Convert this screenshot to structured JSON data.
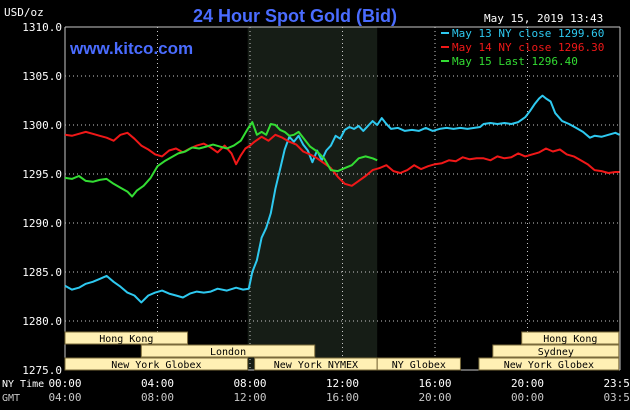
{
  "chart_data": {
    "type": "line",
    "title": "24 Hour Spot Gold (Bid)",
    "watermark": "www.kitco.com",
    "date_stamp": "May 15, 2019 13:43",
    "y_unit": "USD/oz",
    "ylim": [
      1275,
      1310
    ],
    "y_ticks": [
      "1310.0",
      "1305.0",
      "1300.0",
      "1295.0",
      "1290.0",
      "1285.0",
      "1280.0",
      "1275.0"
    ],
    "xlim": [
      0,
      24
    ],
    "x_ticks_ny": [
      "00:00",
      "04:00",
      "08:00",
      "12:00",
      "16:00",
      "20:00",
      "23:59"
    ],
    "x_ticks_gmt": [
      "04:00",
      "08:00",
      "12:00",
      "16:00",
      "20:00",
      "00:00",
      "03:59"
    ],
    "x_row_label_ny": "NY Time",
    "x_row_label_gmt": "GMT",
    "grid": true,
    "legend_position": "top-right",
    "session_highlight": [
      7.9,
      13.5
    ],
    "colors": {
      "background": "#000000",
      "grid": "#c8c8c8",
      "axis_text": "#ffffff",
      "title": "#4a6cff",
      "watermark": "#4a6cff",
      "highlight": "#161d16",
      "market_bar": "#fff0b4",
      "market_text": "#000000"
    },
    "series": [
      {
        "name": "May 13 NY close 1299.60",
        "color": "#2ec9f0",
        "points": [
          [
            0,
            1283.6
          ],
          [
            0.3,
            1283.2
          ],
          [
            0.6,
            1283.4
          ],
          [
            0.9,
            1283.8
          ],
          [
            1.2,
            1284.0
          ],
          [
            1.5,
            1284.3
          ],
          [
            1.8,
            1284.6
          ],
          [
            2.1,
            1284.0
          ],
          [
            2.4,
            1283.5
          ],
          [
            2.7,
            1282.9
          ],
          [
            3.0,
            1282.6
          ],
          [
            3.3,
            1281.9
          ],
          [
            3.6,
            1282.6
          ],
          [
            3.9,
            1282.9
          ],
          [
            4.2,
            1283.1
          ],
          [
            4.5,
            1282.8
          ],
          [
            4.8,
            1282.6
          ],
          [
            5.1,
            1282.4
          ],
          [
            5.4,
            1282.8
          ],
          [
            5.7,
            1283.0
          ],
          [
            6.0,
            1282.9
          ],
          [
            6.3,
            1283.0
          ],
          [
            6.6,
            1283.3
          ],
          [
            7.0,
            1283.1
          ],
          [
            7.4,
            1283.4
          ],
          [
            7.7,
            1283.2
          ],
          [
            7.95,
            1283.3
          ],
          [
            8.1,
            1285.0
          ],
          [
            8.3,
            1286.2
          ],
          [
            8.5,
            1288.5
          ],
          [
            8.7,
            1289.5
          ],
          [
            8.9,
            1291.0
          ],
          [
            9.1,
            1293.5
          ],
          [
            9.3,
            1295.5
          ],
          [
            9.5,
            1297.5
          ],
          [
            9.7,
            1298.8
          ],
          [
            9.9,
            1298.3
          ],
          [
            10.1,
            1298.9
          ],
          [
            10.3,
            1298.0
          ],
          [
            10.5,
            1297.4
          ],
          [
            10.7,
            1296.2
          ],
          [
            10.9,
            1297.4
          ],
          [
            11.1,
            1296.4
          ],
          [
            11.3,
            1297.4
          ],
          [
            11.5,
            1297.9
          ],
          [
            11.7,
            1298.9
          ],
          [
            11.9,
            1298.6
          ],
          [
            12.1,
            1299.5
          ],
          [
            12.3,
            1299.8
          ],
          [
            12.5,
            1299.6
          ],
          [
            12.7,
            1299.9
          ],
          [
            12.9,
            1299.4
          ],
          [
            13.1,
            1299.9
          ],
          [
            13.3,
            1300.4
          ],
          [
            13.5,
            1300.0
          ],
          [
            13.7,
            1300.7
          ],
          [
            13.9,
            1300.1
          ],
          [
            14.1,
            1299.6
          ],
          [
            14.4,
            1299.7
          ],
          [
            14.7,
            1299.4
          ],
          [
            15.0,
            1299.5
          ],
          [
            15.3,
            1299.4
          ],
          [
            15.6,
            1299.7
          ],
          [
            15.9,
            1299.4
          ],
          [
            16.2,
            1299.6
          ],
          [
            16.5,
            1299.7
          ],
          [
            16.8,
            1299.6
          ],
          [
            17.1,
            1299.7
          ],
          [
            17.4,
            1299.6
          ],
          [
            17.7,
            1299.7
          ],
          [
            17.95,
            1299.8
          ],
          [
            18.1,
            1300.1
          ],
          [
            18.4,
            1300.2
          ],
          [
            18.7,
            1300.1
          ],
          [
            19.0,
            1300.2
          ],
          [
            19.3,
            1300.1
          ],
          [
            19.6,
            1300.3
          ],
          [
            19.9,
            1300.8
          ],
          [
            20.1,
            1301.4
          ],
          [
            20.3,
            1302.1
          ],
          [
            20.5,
            1302.7
          ],
          [
            20.65,
            1303.0
          ],
          [
            20.8,
            1302.7
          ],
          [
            21.0,
            1302.4
          ],
          [
            21.2,
            1301.2
          ],
          [
            21.5,
            1300.4
          ],
          [
            21.8,
            1300.1
          ],
          [
            22.1,
            1299.7
          ],
          [
            22.4,
            1299.3
          ],
          [
            22.7,
            1298.7
          ],
          [
            22.9,
            1298.9
          ],
          [
            23.2,
            1298.8
          ],
          [
            23.5,
            1299.0
          ],
          [
            23.8,
            1299.2
          ],
          [
            23.98,
            1299.0
          ]
        ]
      },
      {
        "name": "May 14 NY close 1296.30",
        "color": "#f01818",
        "points": [
          [
            0,
            1299.0
          ],
          [
            0.3,
            1298.9
          ],
          [
            0.6,
            1299.1
          ],
          [
            0.9,
            1299.3
          ],
          [
            1.2,
            1299.1
          ],
          [
            1.5,
            1298.9
          ],
          [
            1.8,
            1298.7
          ],
          [
            2.1,
            1298.4
          ],
          [
            2.4,
            1299.0
          ],
          [
            2.7,
            1299.2
          ],
          [
            3.0,
            1298.6
          ],
          [
            3.3,
            1297.9
          ],
          [
            3.6,
            1297.5
          ],
          [
            3.9,
            1297.0
          ],
          [
            4.2,
            1296.8
          ],
          [
            4.5,
            1297.4
          ],
          [
            4.8,
            1297.6
          ],
          [
            5.1,
            1297.2
          ],
          [
            5.4,
            1297.6
          ],
          [
            5.7,
            1297.9
          ],
          [
            6.0,
            1298.1
          ],
          [
            6.3,
            1297.7
          ],
          [
            6.6,
            1297.2
          ],
          [
            6.9,
            1297.9
          ],
          [
            7.2,
            1297.1
          ],
          [
            7.4,
            1296.0
          ],
          [
            7.6,
            1296.9
          ],
          [
            7.8,
            1297.6
          ],
          [
            8.0,
            1297.9
          ],
          [
            8.2,
            1298.3
          ],
          [
            8.5,
            1298.8
          ],
          [
            8.8,
            1298.4
          ],
          [
            9.1,
            1299.0
          ],
          [
            9.4,
            1298.7
          ],
          [
            9.7,
            1298.3
          ],
          [
            10.0,
            1298.0
          ],
          [
            10.3,
            1297.3
          ],
          [
            10.6,
            1297.0
          ],
          [
            10.9,
            1296.6
          ],
          [
            11.2,
            1296.1
          ],
          [
            11.5,
            1295.6
          ],
          [
            11.8,
            1294.7
          ],
          [
            12.1,
            1294.0
          ],
          [
            12.4,
            1293.8
          ],
          [
            12.7,
            1294.3
          ],
          [
            13.0,
            1294.8
          ],
          [
            13.3,
            1295.4
          ],
          [
            13.6,
            1295.6
          ],
          [
            13.9,
            1295.9
          ],
          [
            14.2,
            1295.3
          ],
          [
            14.5,
            1295.1
          ],
          [
            14.8,
            1295.4
          ],
          [
            15.1,
            1295.9
          ],
          [
            15.4,
            1295.5
          ],
          [
            15.7,
            1295.8
          ],
          [
            16.0,
            1296.0
          ],
          [
            16.3,
            1296.1
          ],
          [
            16.6,
            1296.4
          ],
          [
            16.9,
            1296.3
          ],
          [
            17.2,
            1296.7
          ],
          [
            17.5,
            1296.5
          ],
          [
            17.8,
            1296.6
          ],
          [
            18.1,
            1296.6
          ],
          [
            18.4,
            1296.4
          ],
          [
            18.7,
            1296.8
          ],
          [
            19.0,
            1296.6
          ],
          [
            19.3,
            1296.7
          ],
          [
            19.6,
            1297.1
          ],
          [
            19.9,
            1296.8
          ],
          [
            20.2,
            1297.0
          ],
          [
            20.5,
            1297.2
          ],
          [
            20.8,
            1297.6
          ],
          [
            21.1,
            1297.3
          ],
          [
            21.4,
            1297.5
          ],
          [
            21.7,
            1297.0
          ],
          [
            22.0,
            1296.8
          ],
          [
            22.3,
            1296.4
          ],
          [
            22.6,
            1296.0
          ],
          [
            22.9,
            1295.4
          ],
          [
            23.2,
            1295.3
          ],
          [
            23.5,
            1295.1
          ],
          [
            23.8,
            1295.2
          ],
          [
            23.98,
            1295.2
          ]
        ]
      },
      {
        "name": "May 15 Last 1296.40",
        "color": "#33dd33",
        "points": [
          [
            0,
            1294.6
          ],
          [
            0.3,
            1294.5
          ],
          [
            0.6,
            1294.8
          ],
          [
            0.9,
            1294.3
          ],
          [
            1.2,
            1294.2
          ],
          [
            1.5,
            1294.4
          ],
          [
            1.8,
            1294.5
          ],
          [
            2.1,
            1294.0
          ],
          [
            2.4,
            1293.6
          ],
          [
            2.7,
            1293.2
          ],
          [
            2.9,
            1292.7
          ],
          [
            3.1,
            1293.3
          ],
          [
            3.4,
            1293.8
          ],
          [
            3.7,
            1294.6
          ],
          [
            4.0,
            1295.8
          ],
          [
            4.3,
            1296.3
          ],
          [
            4.6,
            1296.7
          ],
          [
            4.9,
            1297.1
          ],
          [
            5.2,
            1297.3
          ],
          [
            5.5,
            1297.7
          ],
          [
            5.8,
            1297.6
          ],
          [
            6.1,
            1297.8
          ],
          [
            6.4,
            1298.0
          ],
          [
            6.7,
            1297.8
          ],
          [
            7.0,
            1297.6
          ],
          [
            7.3,
            1297.9
          ],
          [
            7.6,
            1298.4
          ],
          [
            7.9,
            1299.6
          ],
          [
            8.1,
            1300.3
          ],
          [
            8.3,
            1299.0
          ],
          [
            8.5,
            1299.3
          ],
          [
            8.7,
            1299.0
          ],
          [
            8.9,
            1300.1
          ],
          [
            9.1,
            1300.0
          ],
          [
            9.3,
            1299.5
          ],
          [
            9.5,
            1299.3
          ],
          [
            9.7,
            1298.9
          ],
          [
            9.9,
            1299.0
          ],
          [
            10.1,
            1299.3
          ],
          [
            10.3,
            1298.7
          ],
          [
            10.6,
            1297.8
          ],
          [
            10.9,
            1297.3
          ],
          [
            11.2,
            1296.6
          ],
          [
            11.5,
            1295.4
          ],
          [
            11.8,
            1295.3
          ],
          [
            12.1,
            1295.6
          ],
          [
            12.4,
            1295.9
          ],
          [
            12.7,
            1296.6
          ],
          [
            13.0,
            1296.8
          ],
          [
            13.3,
            1296.6
          ],
          [
            13.5,
            1296.4
          ]
        ]
      }
    ],
    "markets": [
      {
        "name": "Hong Kong",
        "row": 0,
        "start": 0,
        "end": 5.3
      },
      {
        "name": "Hong Kong",
        "row": 0,
        "start": 19.75,
        "end": 23.95
      },
      {
        "name": "London",
        "row": 1,
        "start": 3.3,
        "end": 10.8
      },
      {
        "name": "Sydney",
        "row": 1,
        "start": 18.5,
        "end": 23.95
      },
      {
        "name": "New York Globex",
        "row": 2,
        "start": 0,
        "end": 7.9
      },
      {
        "name": "New York NYMEX",
        "row": 2,
        "start": 8.2,
        "end": 13.5
      },
      {
        "name": "NY Globex",
        "row": 2,
        "start": 13.5,
        "end": 17.1
      },
      {
        "name": "New York Globex",
        "row": 2,
        "start": 17.9,
        "end": 23.95
      }
    ]
  }
}
